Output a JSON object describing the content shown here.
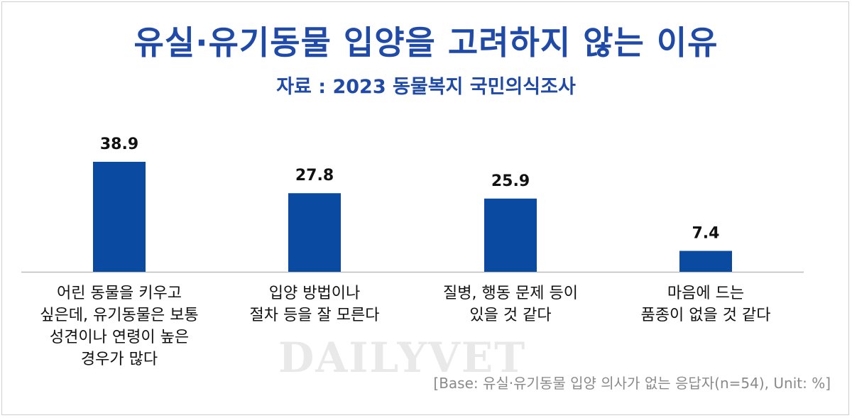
{
  "chart_data": {
    "type": "bar",
    "title": "유실·유기동물 입양을 고려하지 않는 이유",
    "subtitle": "자료 : 2023 동물복지 국민의식조사",
    "categories": [
      "어린 동물을 키우고\n싶은데, 유기동물은 보통\n성견이나 연령이 높은\n경우가 많다",
      "입양 방법이나\n절차 등을 잘 모른다",
      "질병, 행동 문제 등이\n있을 것 같다",
      "마음에 드는\n품종이 없을 것 같다"
    ],
    "values": [
      38.9,
      27.8,
      25.9,
      7.4
    ],
    "value_labels": [
      "38.9",
      "27.8",
      "25.9",
      "7.4"
    ],
    "ylim": [
      0,
      40
    ],
    "grid": false,
    "bar_color": "#0a4aa0",
    "note": "[Base: 유실·유기동물 입양 의사가 없는 응답자(n=54), Unit: %]"
  },
  "watermark": "DAILYVET",
  "colors": {
    "title": "#1f4aa8",
    "axis": "#bdbdbd"
  }
}
